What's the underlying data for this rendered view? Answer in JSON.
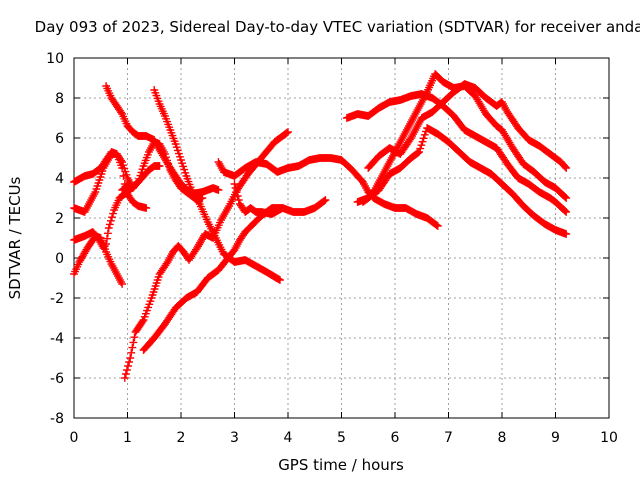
{
  "chart_data": {
    "type": "scatter",
    "title": "Day 093 of 2023, Sidereal Day-to-day VTEC variation (SDTVAR) for receiver anda",
    "xlabel": "GPS time / hours",
    "ylabel": "SDTVAR / TECUs",
    "xlim": [
      0,
      10
    ],
    "ylim": [
      -8,
      10
    ],
    "xticks": [
      0,
      1,
      2,
      3,
      4,
      5,
      6,
      7,
      8,
      9,
      10
    ],
    "yticks": [
      -8,
      -6,
      -4,
      -2,
      0,
      2,
      4,
      6,
      8,
      10
    ],
    "grid": true,
    "legend": "none",
    "marker": "+",
    "color": "#ff0000",
    "series": [
      {
        "x": [
          0.0,
          0.2,
          0.4,
          0.55,
          0.7,
          0.8,
          0.9,
          0.95,
          1.0,
          1.1,
          1.2,
          1.35
        ],
        "y": [
          2.5,
          2.3,
          3.3,
          4.5,
          5.2,
          5.2,
          4.5,
          3.7,
          3.2,
          2.8,
          2.6,
          2.5
        ]
      },
      {
        "x": [
          0.0,
          0.1,
          0.25,
          0.4,
          0.5,
          0.6,
          0.7,
          0.8,
          0.9
        ],
        "y": [
          -0.8,
          -0.2,
          0.5,
          1.1,
          1.0,
          0.3,
          -0.3,
          -0.8,
          -1.3
        ]
      },
      {
        "x": [
          0.0,
          0.2,
          0.35,
          0.5,
          0.6,
          0.7,
          0.8,
          0.9,
          1.0,
          1.1
        ],
        "y": [
          3.8,
          4.1,
          4.2,
          4.5,
          4.9,
          5.3,
          5.2,
          4.8,
          4.0,
          3.5
        ]
      },
      {
        "x": [
          0.0,
          0.2,
          0.35,
          0.45,
          0.55,
          0.6,
          0.65,
          0.75,
          0.85,
          1.0,
          1.2,
          1.4,
          1.5,
          1.6
        ],
        "y": [
          0.9,
          1.1,
          1.3,
          1.0,
          0.5,
          0.7,
          1.5,
          2.4,
          3.0,
          3.3,
          3.8,
          4.4,
          4.6,
          4.6
        ]
      },
      {
        "x": [
          0.6,
          0.7,
          0.8,
          0.9,
          1.0,
          1.1,
          1.2,
          1.35,
          1.5,
          1.6,
          1.8,
          2.0,
          2.2,
          2.4,
          2.6,
          2.7
        ],
        "y": [
          8.6,
          8.0,
          7.6,
          7.2,
          6.6,
          6.3,
          6.1,
          6.1,
          5.9,
          5.4,
          4.5,
          3.7,
          3.2,
          3.3,
          3.5,
          3.4
        ]
      },
      {
        "x": [
          0.9,
          1.0,
          1.1,
          1.2,
          1.3,
          1.4,
          1.5,
          1.6,
          1.7,
          1.8,
          1.9,
          2.0,
          2.1,
          2.2,
          2.3,
          2.4
        ],
        "y": [
          3.4,
          3.6,
          3.5,
          3.8,
          4.6,
          5.3,
          5.8,
          5.7,
          5.2,
          4.4,
          3.9,
          3.5,
          3.3,
          3.1,
          2.9,
          3.0
        ]
      },
      {
        "x": [
          1.5,
          1.6,
          1.7,
          1.8,
          1.9,
          2.0,
          2.1,
          2.2,
          2.35,
          2.5,
          2.65,
          2.8,
          3.0,
          3.2,
          3.4,
          3.6,
          3.85
        ],
        "y": [
          8.4,
          7.7,
          7.1,
          6.4,
          5.7,
          4.9,
          4.1,
          3.4,
          2.7,
          1.8,
          1.0,
          0.2,
          -0.2,
          -0.1,
          -0.4,
          -0.7,
          -1.1
        ]
      },
      {
        "x": [
          0.95,
          1.05,
          1.15,
          1.3,
          1.45,
          1.6,
          1.75,
          1.85,
          1.95,
          2.05,
          2.15,
          2.3,
          2.45,
          2.6,
          2.75,
          2.9,
          3.05,
          3.25,
          3.5,
          3.75,
          4.0
        ],
        "y": [
          -6.0,
          -5.0,
          -3.7,
          -3.1,
          -2.0,
          -0.8,
          -0.2,
          0.3,
          0.6,
          0.3,
          -0.1,
          0.5,
          1.2,
          1.0,
          1.9,
          2.6,
          3.4,
          4.2,
          5.0,
          5.8,
          6.3
        ]
      },
      {
        "x": [
          1.3,
          1.5,
          1.7,
          1.9,
          2.1,
          2.3,
          2.5,
          2.7,
          2.85,
          3.0,
          3.1,
          3.2,
          3.35,
          3.5,
          3.7,
          3.9
        ],
        "y": [
          -4.6,
          -4.0,
          -3.3,
          -2.5,
          -2.0,
          -1.7,
          -1.0,
          -0.6,
          -0.1,
          0.4,
          0.9,
          1.3,
          1.7,
          2.1,
          2.5,
          2.5
        ]
      },
      {
        "x": [
          2.7,
          2.8,
          3.0,
          3.2,
          3.4,
          3.6,
          3.8,
          4.0,
          4.2,
          4.4,
          4.6,
          4.8,
          5.0,
          5.2,
          5.4,
          5.5,
          5.6,
          5.8,
          6.0,
          6.2,
          6.4,
          6.6,
          6.8
        ],
        "y": [
          4.8,
          4.3,
          4.1,
          4.5,
          4.8,
          4.7,
          4.3,
          4.5,
          4.6,
          4.9,
          5.0,
          5.0,
          4.9,
          4.4,
          3.8,
          3.3,
          3.0,
          2.7,
          2.5,
          2.5,
          2.2,
          2.0,
          1.6
        ]
      },
      {
        "x": [
          3.0,
          3.1,
          3.2,
          3.3,
          3.4,
          3.5,
          3.7,
          3.9,
          4.1,
          4.3,
          4.5,
          4.7
        ],
        "y": [
          3.7,
          2.7,
          2.3,
          2.5,
          2.3,
          2.3,
          2.2,
          2.5,
          2.3,
          2.3,
          2.5,
          2.9
        ]
      },
      {
        "x": [
          5.1,
          5.3,
          5.5,
          5.7,
          5.9,
          6.1,
          6.3,
          6.5,
          6.7,
          6.9,
          7.1,
          7.3,
          7.5,
          7.7,
          7.9,
          8.1,
          8.3,
          8.5,
          8.7,
          8.9,
          9.0,
          9.2
        ],
        "y": [
          7.0,
          7.2,
          7.1,
          7.5,
          7.8,
          7.9,
          8.1,
          8.2,
          8.0,
          7.6,
          7.1,
          6.4,
          6.1,
          5.8,
          5.5,
          4.7,
          4.0,
          3.7,
          3.3,
          3.0,
          2.8,
          2.3
        ]
      },
      {
        "x": [
          5.4,
          5.5,
          5.6,
          5.8,
          6.0,
          6.2,
          6.4,
          6.6,
          6.75,
          6.9,
          7.1,
          7.3,
          7.5,
          7.7,
          7.9,
          8.0,
          8.2,
          8.4,
          8.6,
          8.8,
          9.0,
          9.2
        ],
        "y": [
          2.8,
          3.0,
          3.3,
          4.3,
          5.3,
          6.3,
          7.3,
          8.3,
          9.2,
          8.8,
          8.5,
          8.6,
          8.1,
          7.2,
          6.6,
          6.4,
          5.5,
          4.7,
          4.3,
          3.8,
          3.5,
          3.0
        ]
      },
      {
        "x": [
          5.5,
          5.7,
          5.9,
          6.1,
          6.3,
          6.5,
          6.7,
          6.9,
          7.1,
          7.3,
          7.5,
          7.7,
          7.9,
          8.0,
          8.1,
          8.3,
          8.5,
          8.7,
          8.9,
          9.1,
          9.2
        ],
        "y": [
          4.5,
          5.1,
          5.5,
          5.2,
          6.0,
          7.0,
          7.3,
          7.8,
          8.3,
          8.7,
          8.5,
          8.0,
          7.6,
          7.8,
          7.3,
          6.5,
          5.9,
          5.6,
          5.2,
          4.8,
          4.5
        ]
      },
      {
        "x": [
          5.3,
          5.5,
          5.7,
          5.9,
          6.1,
          6.3,
          6.45,
          6.6,
          6.8,
          7.0,
          7.2,
          7.4,
          7.6,
          7.8,
          8.0,
          8.2,
          8.4,
          8.6,
          8.8,
          9.0,
          9.2
        ],
        "y": [
          2.8,
          3.0,
          3.4,
          4.2,
          4.5,
          5.0,
          5.3,
          6.5,
          6.2,
          5.8,
          5.3,
          4.8,
          4.5,
          4.2,
          3.7,
          3.2,
          2.6,
          2.1,
          1.7,
          1.4,
          1.2
        ]
      }
    ]
  }
}
